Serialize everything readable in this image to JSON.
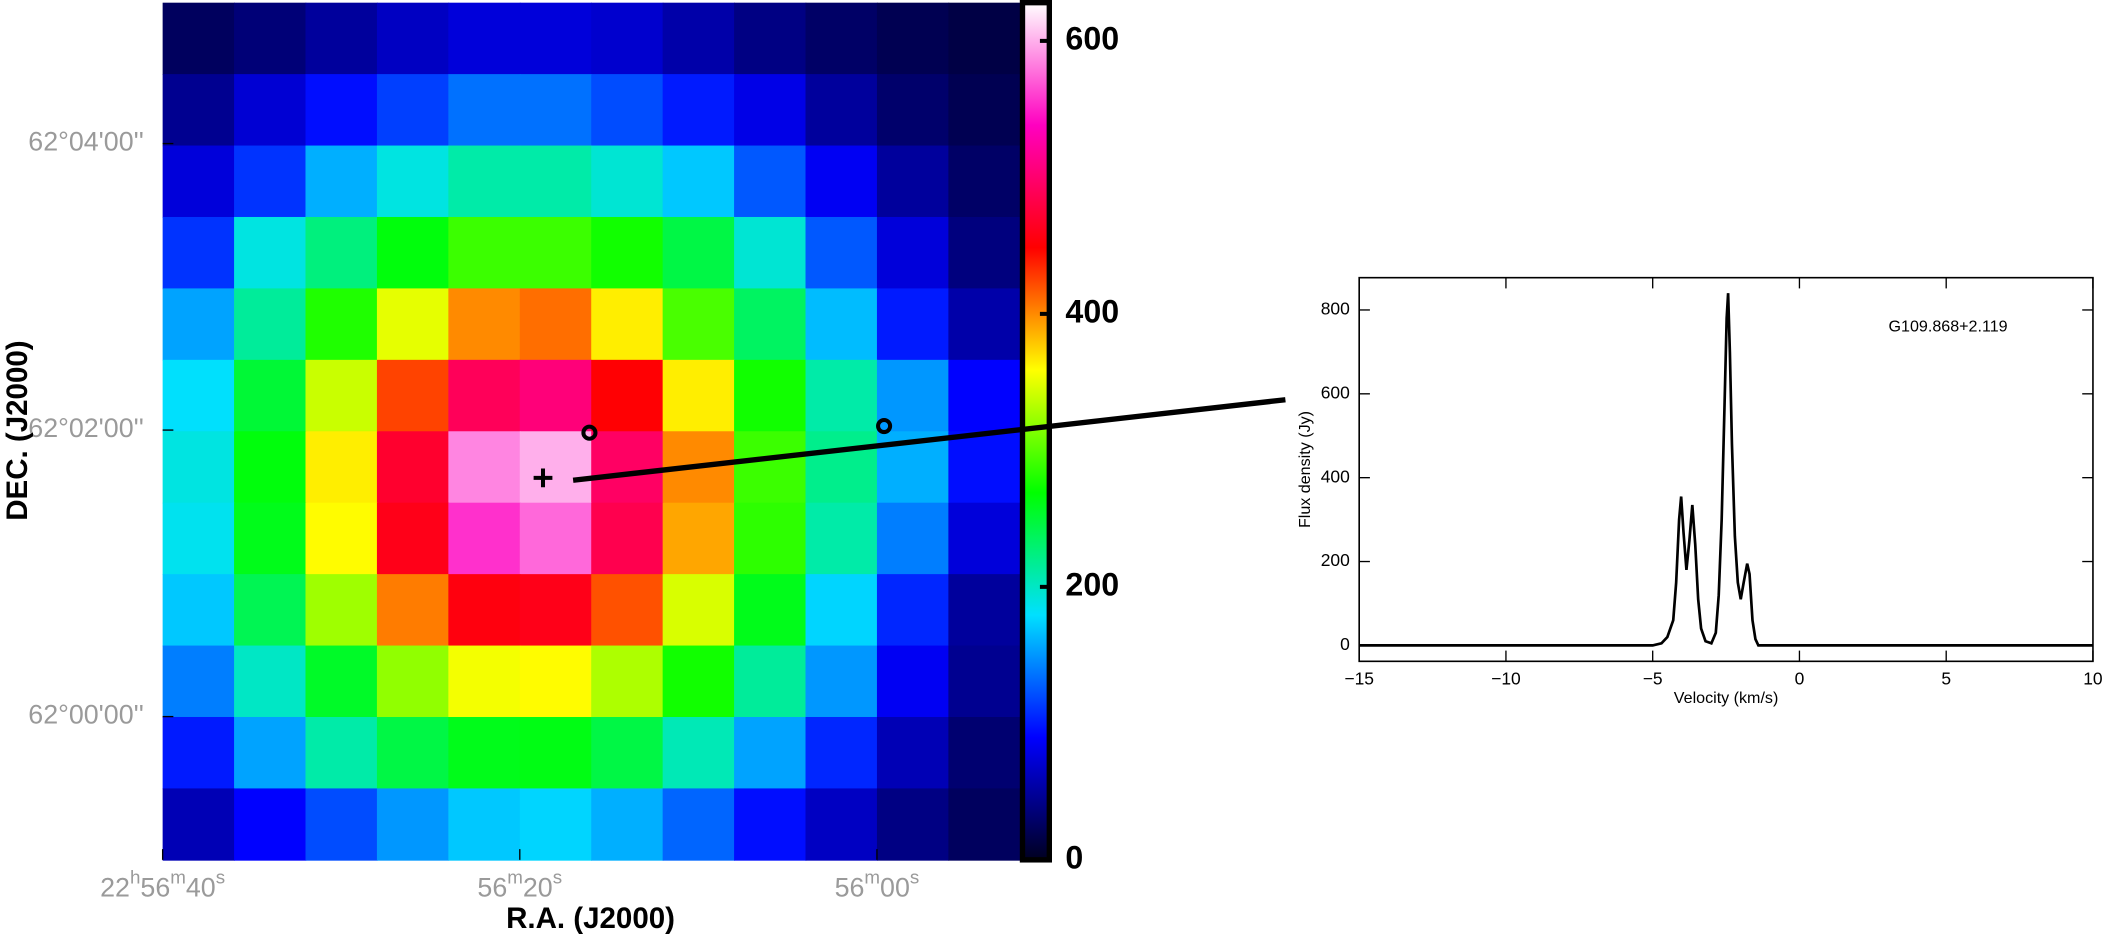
{
  "chart_data": [
    {
      "type": "heatmap",
      "xlabel": "R.A. (J2000)",
      "ylabel": "DEC. (J2000)",
      "xlim": [
        40,
        -8
      ],
      "ylim": [
        -60,
        299
      ],
      "xticks": [
        {
          "value": 40,
          "label": "22h56m40s"
        },
        {
          "value": 20,
          "label": "56m20s"
        },
        {
          "value": 0,
          "label": "56m00s"
        }
      ],
      "yticks": [
        {
          "value": 240,
          "label": "62°04'00''"
        },
        {
          "value": 120,
          "label": "62°02'00''"
        },
        {
          "value": 0,
          "label": "62°00'00''"
        }
      ],
      "z": [
        [
          25,
          35,
          50,
          65,
          75,
          75,
          70,
          55,
          40,
          28,
          20,
          15
        ],
        [
          45,
          72,
          95,
          115,
          135,
          135,
          120,
          100,
          80,
          50,
          30,
          20
        ],
        [
          75,
          110,
          160,
          190,
          210,
          210,
          195,
          170,
          125,
          85,
          50,
          28
        ],
        [
          110,
          190,
          225,
          265,
          290,
          290,
          275,
          245,
          195,
          125,
          75,
          38
        ],
        [
          155,
          215,
          280,
          350,
          400,
          410,
          365,
          295,
          235,
          165,
          100,
          55
        ],
        [
          180,
          250,
          340,
          425,
          490,
          505,
          450,
          365,
          275,
          210,
          150,
          90
        ],
        [
          190,
          265,
          365,
          470,
          585,
          600,
          495,
          400,
          290,
          220,
          160,
          95
        ],
        [
          185,
          260,
          360,
          460,
          555,
          575,
          485,
          390,
          285,
          210,
          140,
          75
        ],
        [
          170,
          240,
          325,
          405,
          455,
          460,
          420,
          345,
          260,
          175,
          105,
          50
        ],
        [
          140,
          200,
          255,
          320,
          355,
          360,
          330,
          275,
          215,
          150,
          85,
          45
        ],
        [
          100,
          155,
          210,
          245,
          260,
          262,
          245,
          205,
          155,
          105,
          60,
          32
        ],
        [
          60,
          90,
          120,
          150,
          170,
          175,
          160,
          130,
          95,
          65,
          40,
          25
        ]
      ],
      "colormap": [
        "#000020",
        "#0000ff",
        "#00e0ff",
        "#00ff00",
        "#ffff00",
        "#ff0000",
        "#ff00c0",
        "#ffffff"
      ],
      "clim": [
        0,
        628
      ],
      "colorbar_ticks": [
        0,
        200,
        400,
        600
      ],
      "cross": {
        "x": 18.7,
        "y": 100
      },
      "circles": {
        "x": [
          16.1,
          -0.4
        ],
        "y": [
          118.9,
          121.7
        ]
      }
    },
    {
      "type": "line",
      "xlabel": "Velocity (km/s)",
      "ylabel": "Flux density (Jy)",
      "annotation": "G109.868+2.119",
      "color": "#000000",
      "x": [
        -15,
        -5,
        -4.7,
        -4.5,
        -4.3,
        -4.2,
        -4.1,
        -4.03,
        -3.95,
        -3.85,
        -3.75,
        -3.65,
        -3.55,
        -3.45,
        -3.35,
        -3.2,
        -3.0,
        -2.85,
        -2.75,
        -2.65,
        -2.55,
        -2.48,
        -2.43,
        -2.37,
        -2.3,
        -2.2,
        -2.1,
        -2.0,
        -1.9,
        -1.78,
        -1.7,
        -1.6,
        -1.5,
        -1.4,
        10
      ],
      "values": [
        0,
        0,
        5,
        20,
        60,
        150,
        300,
        355,
        270,
        180,
        250,
        335,
        240,
        110,
        40,
        10,
        5,
        30,
        120,
        300,
        580,
        780,
        840,
        700,
        480,
        260,
        150,
        110,
        150,
        195,
        170,
        60,
        15,
        0,
        0
      ],
      "xlim": [
        -15,
        10
      ],
      "ylim": [
        -38,
        877
      ],
      "xticks": [
        {
          "value": -15,
          "label": "−15"
        },
        {
          "value": -10,
          "label": "−10"
        },
        {
          "value": -5,
          "label": "−5"
        },
        0,
        5,
        10
      ],
      "yticks": [
        0,
        200,
        400,
        600,
        800
      ]
    }
  ]
}
